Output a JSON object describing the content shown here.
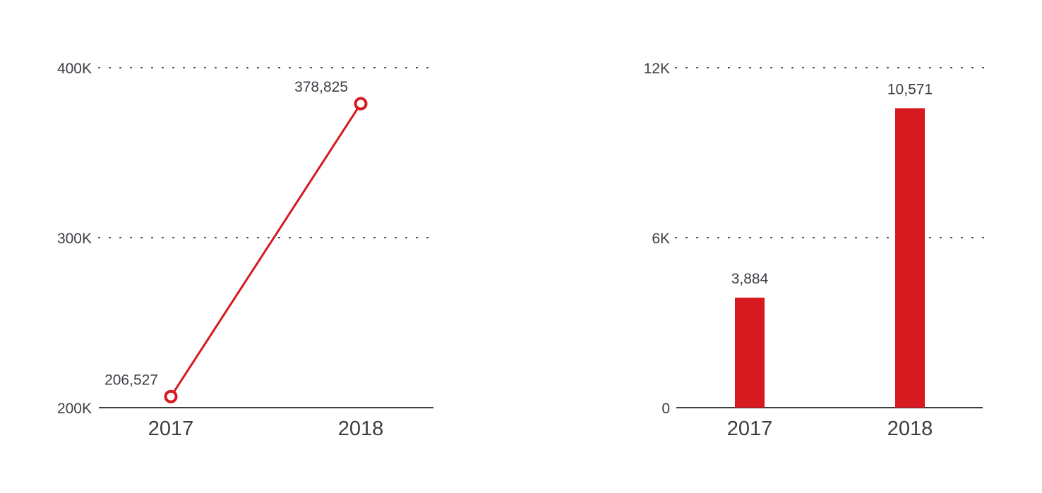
{
  "chart_data": [
    {
      "type": "line",
      "categories": [
        "2017",
        "2018"
      ],
      "series": [
        {
          "values": [
            206527,
            378825
          ]
        }
      ],
      "data_labels": [
        "206,527",
        "378,825"
      ],
      "ylim": [
        200000,
        400000
      ],
      "yticks": [
        {
          "value": 200000,
          "label": "200K"
        },
        {
          "value": 300000,
          "label": "300K"
        },
        {
          "value": 400000,
          "label": "400K"
        }
      ],
      "grid": "dotted",
      "color": "#d71920"
    },
    {
      "type": "bar",
      "categories": [
        "2017",
        "2018"
      ],
      "values": [
        3884,
        10571
      ],
      "data_labels": [
        "3,884",
        "10,571"
      ],
      "ylim": [
        0,
        12000
      ],
      "yticks": [
        {
          "value": 0,
          "label": "0"
        },
        {
          "value": 6000,
          "label": "6K"
        },
        {
          "value": 12000,
          "label": "12K"
        }
      ],
      "grid": "dotted",
      "color": "#d71920"
    }
  ],
  "colors": {
    "accent": "#d71920",
    "text": "#3c3e45",
    "axis": "#3c3e45",
    "grid": "#3c3e45"
  }
}
